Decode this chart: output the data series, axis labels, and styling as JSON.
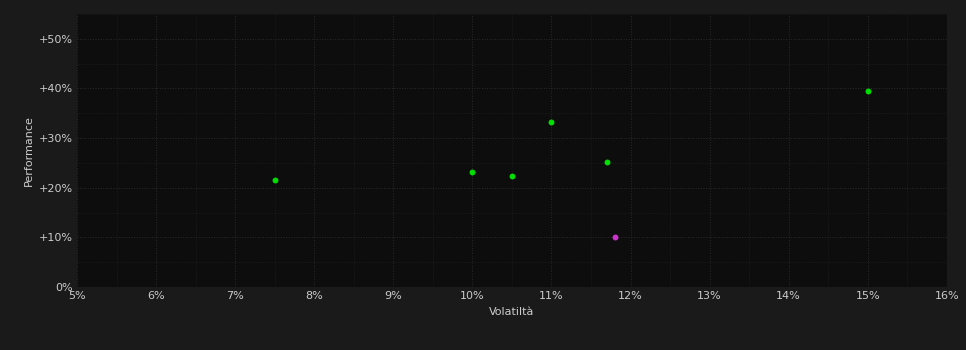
{
  "background_color": "#1a1a1a",
  "plot_bg_color": "#0d0d0d",
  "grid_color": "#2a2a2a",
  "text_color": "#cccccc",
  "xlabel": "Volatiltà",
  "ylabel": "Performance",
  "xlim": [
    0.05,
    0.16
  ],
  "ylim": [
    0.0,
    0.55
  ],
  "xticks": [
    0.05,
    0.06,
    0.07,
    0.08,
    0.09,
    0.1,
    0.11,
    0.12,
    0.13,
    0.14,
    0.15,
    0.16
  ],
  "yticks": [
    0.0,
    0.1,
    0.2,
    0.3,
    0.4,
    0.5
  ],
  "ytick_labels": [
    "0%",
    "+10%",
    "+20%",
    "+30%",
    "+40%",
    "+50%"
  ],
  "green_points": [
    [
      0.075,
      0.215
    ],
    [
      0.1,
      0.232
    ],
    [
      0.105,
      0.224
    ],
    [
      0.11,
      0.332
    ],
    [
      0.117,
      0.252
    ],
    [
      0.15,
      0.395
    ]
  ],
  "magenta_points": [
    [
      0.118,
      0.1
    ]
  ],
  "green_color": "#00dd00",
  "magenta_color": "#cc33cc",
  "marker_size": 18,
  "axis_fontsize": 8,
  "tick_fontsize": 8,
  "grid_minor_color": "#222222",
  "grid_major_color": "#2a2a2a"
}
